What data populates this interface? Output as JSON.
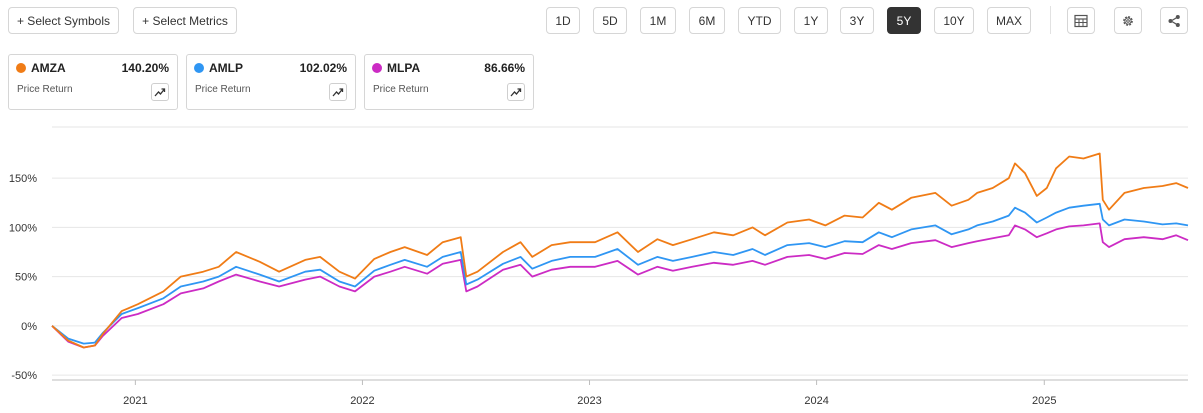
{
  "toolbar": {
    "select_symbols": "+ Select Symbols",
    "select_metrics": "+ Select Metrics",
    "ranges": [
      "1D",
      "5D",
      "1M",
      "6M",
      "YTD",
      "1Y",
      "3Y",
      "5Y",
      "10Y",
      "MAX"
    ],
    "active_range": "5Y",
    "icons": [
      "table-icon",
      "settings-gear-icon",
      "share-icon"
    ]
  },
  "legend": [
    {
      "symbol": "AMZA",
      "value": "140.20%",
      "metric": "Price Return",
      "color": "#f07c16"
    },
    {
      "symbol": "AMLP",
      "value": "102.02%",
      "metric": "Price Return",
      "color": "#2f96f3"
    },
    {
      "symbol": "MLPA",
      "value": "86.66%",
      "metric": "Price Return",
      "color": "#cc2bc4"
    }
  ],
  "chart_data": {
    "type": "line",
    "title": "",
    "xlabel": "",
    "ylabel": "",
    "y_unit": "%",
    "ylim": [
      -55,
      205
    ],
    "yticks": [
      -50,
      0,
      50,
      100,
      150
    ],
    "ytick_labels": [
      "-50%",
      "0%",
      "50%",
      "100%",
      "150%"
    ],
    "xlim": [
      "2020-08-20",
      "2025-08-20"
    ],
    "xticks": [
      "2021-01-01",
      "2022-01-01",
      "2023-01-01",
      "2024-01-01",
      "2025-01-01"
    ],
    "xtick_labels": [
      "2021",
      "2022",
      "2023",
      "2024",
      "2025"
    ],
    "grid": "horizontal",
    "legend": "top-left",
    "series": [
      {
        "name": "AMZA",
        "color": "#f07c16",
        "x": [
          "2020-08-20",
          "2020-09-15",
          "2020-10-10",
          "2020-10-28",
          "2020-11-10",
          "2020-12-10",
          "2021-01-05",
          "2021-02-15",
          "2021-03-15",
          "2021-04-20",
          "2021-05-15",
          "2021-06-12",
          "2021-07-20",
          "2021-08-20",
          "2021-10-01",
          "2021-10-25",
          "2021-11-25",
          "2021-12-20",
          "2022-01-20",
          "2022-02-15",
          "2022-03-10",
          "2022-04-15",
          "2022-05-10",
          "2022-06-08",
          "2022-06-17",
          "2022-07-05",
          "2022-08-15",
          "2022-09-12",
          "2022-10-01",
          "2022-11-01",
          "2022-12-01",
          "2023-01-10",
          "2023-02-15",
          "2023-03-20",
          "2023-04-20",
          "2023-05-15",
          "2023-06-15",
          "2023-07-20",
          "2023-08-20",
          "2023-09-20",
          "2023-10-10",
          "2023-11-15",
          "2023-12-20",
          "2024-01-15",
          "2024-02-15",
          "2024-03-15",
          "2024-04-10",
          "2024-05-01",
          "2024-06-01",
          "2024-07-10",
          "2024-08-05",
          "2024-09-01",
          "2024-09-15",
          "2024-10-10",
          "2024-11-05",
          "2024-11-15",
          "2024-12-01",
          "2024-12-20",
          "2025-01-05",
          "2025-01-20",
          "2025-02-10",
          "2025-03-05",
          "2025-03-31",
          "2025-04-05",
          "2025-04-15",
          "2025-05-10",
          "2025-06-10",
          "2025-07-10",
          "2025-08-01",
          "2025-08-20"
        ],
        "values": [
          0,
          -15,
          -22,
          -20,
          -8,
          15,
          22,
          35,
          50,
          55,
          60,
          75,
          65,
          55,
          67,
          70,
          55,
          48,
          68,
          75,
          80,
          72,
          85,
          90,
          50,
          55,
          75,
          85,
          70,
          82,
          85,
          85,
          95,
          75,
          88,
          82,
          88,
          95,
          92,
          100,
          92,
          105,
          108,
          102,
          112,
          110,
          125,
          118,
          130,
          135,
          122,
          128,
          135,
          140,
          150,
          165,
          155,
          132,
          140,
          160,
          172,
          170,
          175,
          128,
          118,
          135,
          140,
          142,
          145,
          140
        ]
      },
      {
        "name": "AMLP",
        "color": "#2f96f3",
        "x": [
          "2020-08-20",
          "2020-09-15",
          "2020-10-10",
          "2020-10-28",
          "2020-11-10",
          "2020-12-10",
          "2021-01-05",
          "2021-02-15",
          "2021-03-15",
          "2021-04-20",
          "2021-05-15",
          "2021-06-12",
          "2021-07-20",
          "2021-08-20",
          "2021-10-01",
          "2021-10-25",
          "2021-11-25",
          "2021-12-20",
          "2022-01-20",
          "2022-02-15",
          "2022-03-10",
          "2022-04-15",
          "2022-05-10",
          "2022-06-08",
          "2022-06-17",
          "2022-07-05",
          "2022-08-15",
          "2022-09-12",
          "2022-10-01",
          "2022-11-01",
          "2022-12-01",
          "2023-01-10",
          "2023-02-15",
          "2023-03-20",
          "2023-04-20",
          "2023-05-15",
          "2023-06-15",
          "2023-07-20",
          "2023-08-20",
          "2023-09-20",
          "2023-10-10",
          "2023-11-15",
          "2023-12-20",
          "2024-01-15",
          "2024-02-15",
          "2024-03-15",
          "2024-04-10",
          "2024-05-01",
          "2024-06-01",
          "2024-07-10",
          "2024-08-05",
          "2024-09-01",
          "2024-09-15",
          "2024-10-10",
          "2024-11-05",
          "2024-11-15",
          "2024-12-01",
          "2024-12-20",
          "2025-01-05",
          "2025-01-20",
          "2025-02-10",
          "2025-03-05",
          "2025-03-31",
          "2025-04-05",
          "2025-04-15",
          "2025-05-10",
          "2025-06-10",
          "2025-07-10",
          "2025-08-01",
          "2025-08-20"
        ],
        "values": [
          0,
          -13,
          -18,
          -17,
          -7,
          12,
          18,
          28,
          40,
          45,
          50,
          60,
          52,
          45,
          55,
          57,
          45,
          40,
          56,
          62,
          67,
          60,
          70,
          75,
          42,
          47,
          63,
          70,
          58,
          66,
          70,
          70,
          78,
          62,
          70,
          66,
          70,
          75,
          72,
          78,
          72,
          82,
          84,
          80,
          86,
          85,
          95,
          90,
          98,
          102,
          93,
          98,
          102,
          106,
          112,
          120,
          115,
          105,
          110,
          115,
          120,
          122,
          124,
          108,
          102,
          108,
          106,
          103,
          104,
          102
        ]
      },
      {
        "name": "MLPA",
        "color": "#cc2bc4",
        "x": [
          "2020-08-20",
          "2020-09-15",
          "2020-10-10",
          "2020-10-28",
          "2020-11-10",
          "2020-12-10",
          "2021-01-05",
          "2021-02-15",
          "2021-03-15",
          "2021-04-20",
          "2021-05-15",
          "2021-06-12",
          "2021-07-20",
          "2021-08-20",
          "2021-10-01",
          "2021-10-25",
          "2021-11-25",
          "2021-12-20",
          "2022-01-20",
          "2022-02-15",
          "2022-03-10",
          "2022-04-15",
          "2022-05-10",
          "2022-06-08",
          "2022-06-17",
          "2022-07-05",
          "2022-08-15",
          "2022-09-12",
          "2022-10-01",
          "2022-11-01",
          "2022-12-01",
          "2023-01-10",
          "2023-02-15",
          "2023-03-20",
          "2023-04-20",
          "2023-05-15",
          "2023-06-15",
          "2023-07-20",
          "2023-08-20",
          "2023-09-20",
          "2023-10-10",
          "2023-11-15",
          "2023-12-20",
          "2024-01-15",
          "2024-02-15",
          "2024-03-15",
          "2024-04-10",
          "2024-05-01",
          "2024-06-01",
          "2024-07-10",
          "2024-08-05",
          "2024-09-01",
          "2024-09-15",
          "2024-10-10",
          "2024-11-05",
          "2024-11-15",
          "2024-12-01",
          "2024-12-20",
          "2025-01-05",
          "2025-01-20",
          "2025-02-10",
          "2025-03-05",
          "2025-03-31",
          "2025-04-05",
          "2025-04-15",
          "2025-05-10",
          "2025-06-10",
          "2025-07-10",
          "2025-08-01",
          "2025-08-20"
        ],
        "values": [
          0,
          -16,
          -22,
          -20,
          -10,
          8,
          12,
          22,
          33,
          38,
          45,
          52,
          45,
          40,
          47,
          50,
          40,
          35,
          50,
          55,
          60,
          53,
          63,
          67,
          35,
          40,
          57,
          62,
          50,
          57,
          60,
          60,
          66,
          52,
          60,
          56,
          60,
          64,
          62,
          66,
          62,
          70,
          72,
          68,
          74,
          73,
          82,
          78,
          84,
          87,
          80,
          84,
          86,
          89,
          92,
          102,
          98,
          90,
          94,
          98,
          101,
          102,
          104,
          85,
          80,
          88,
          90,
          88,
          92,
          87
        ]
      }
    ]
  }
}
